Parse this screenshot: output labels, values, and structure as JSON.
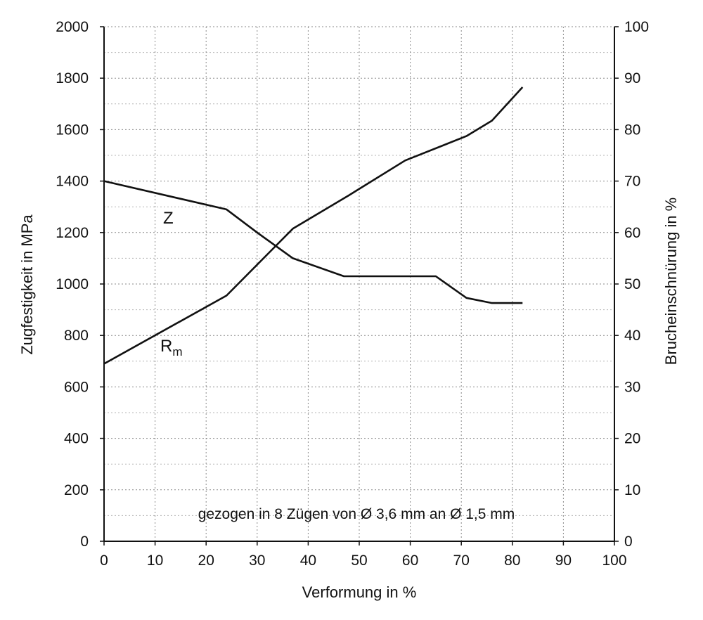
{
  "chart_data": {
    "type": "line",
    "xlabel": "Verformung in %",
    "ylabel": "Zugfestigkeit in MPa",
    "y2label": "Brucheinschnürung in %",
    "xlim": [
      0,
      100
    ],
    "ylim": [
      0,
      2000
    ],
    "y2lim": [
      0,
      100
    ],
    "x_ticks": [
      0,
      10,
      20,
      30,
      40,
      50,
      60,
      70,
      80,
      90,
      100
    ],
    "y_ticks": [
      0,
      200,
      400,
      600,
      800,
      1000,
      1200,
      1400,
      1600,
      1800,
      2000
    ],
    "y2_ticks": [
      0,
      10,
      20,
      30,
      40,
      50,
      60,
      70,
      80,
      90,
      100
    ],
    "grid": true,
    "annotation": "gezogen in 8 Zügen von Ø 3,6 mm an Ø 1,5 mm",
    "series": [
      {
        "name": "Rm",
        "axis": "left",
        "points": [
          [
            0,
            690
          ],
          [
            24,
            955
          ],
          [
            37,
            1215
          ],
          [
            48,
            1345
          ],
          [
            59,
            1480
          ],
          [
            71,
            1575
          ],
          [
            76,
            1635
          ],
          [
            82,
            1765
          ]
        ]
      },
      {
        "name": "Z",
        "axis": "right",
        "points": [
          [
            0,
            70
          ],
          [
            24,
            64.5
          ],
          [
            30,
            60
          ],
          [
            37,
            55
          ],
          [
            47,
            51.5
          ],
          [
            65,
            51.5
          ],
          [
            71,
            47.3
          ],
          [
            76,
            46.3
          ],
          [
            82,
            46.3
          ]
        ]
      }
    ],
    "series_labels": [
      {
        "series": "Z",
        "main": "Z",
        "sub": ""
      },
      {
        "series": "Rm",
        "main": "R",
        "sub": "m"
      }
    ]
  }
}
